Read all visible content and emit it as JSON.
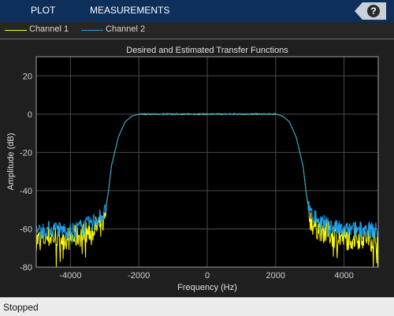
{
  "toolbar": {
    "tabs": [
      {
        "label": "PLOT"
      },
      {
        "label": "MEASUREMENTS"
      }
    ],
    "help_label": "?"
  },
  "legend": {
    "items": [
      {
        "label": "Channel 1",
        "color": "#ffff00"
      },
      {
        "label": "Channel 2",
        "color": "#1f9fe8"
      }
    ]
  },
  "chart_data": {
    "type": "line",
    "title": "Desired and Estimated Transfer Functions",
    "xlabel": "Frequency (Hz)",
    "ylabel": "Amplitude (dB)",
    "xlim": [
      -5000,
      5000
    ],
    "ylim": [
      -80,
      30
    ],
    "xticks": [
      -4000,
      -2000,
      0,
      2000,
      4000
    ],
    "yticks": [
      20,
      0,
      -20,
      -40,
      -60,
      -80
    ],
    "grid": true,
    "series": [
      {
        "name": "Channel 1",
        "color": "#ffff00",
        "x": [
          -5000,
          -4500,
          -4000,
          -3500,
          -3100,
          -3000,
          -2900,
          -2800,
          -2600,
          -2400,
          -2200,
          -2000,
          -1500,
          0,
          1500,
          2000,
          2200,
          2400,
          2600,
          2800,
          2900,
          3000,
          3100,
          3500,
          4000,
          4500,
          5000
        ],
        "y": [
          -66,
          -64,
          -65,
          -62,
          -58,
          -54,
          -42,
          -27,
          -12,
          -4,
          -1,
          0,
          0,
          0,
          0,
          0,
          -1,
          -4,
          -12,
          -27,
          -42,
          -54,
          -58,
          -62,
          -65,
          -64,
          -66
        ]
      },
      {
        "name": "Channel 2",
        "color": "#1f9fe8",
        "x": [
          -5000,
          -4500,
          -4000,
          -3500,
          -3100,
          -3000,
          -2900,
          -2800,
          -2600,
          -2400,
          -2200,
          -2000,
          -1500,
          0,
          1500,
          2000,
          2200,
          2400,
          2600,
          2800,
          2900,
          3000,
          3100,
          3500,
          4000,
          4500,
          5000
        ],
        "y": [
          -61,
          -60,
          -61,
          -58,
          -53,
          -52,
          -42,
          -27,
          -12,
          -4,
          -1,
          0,
          0,
          0,
          0,
          0,
          -1,
          -4,
          -12,
          -27,
          -42,
          -52,
          -53,
          -58,
          -61,
          -60,
          -61
        ]
      }
    ]
  },
  "status": {
    "text": "Stopped"
  }
}
